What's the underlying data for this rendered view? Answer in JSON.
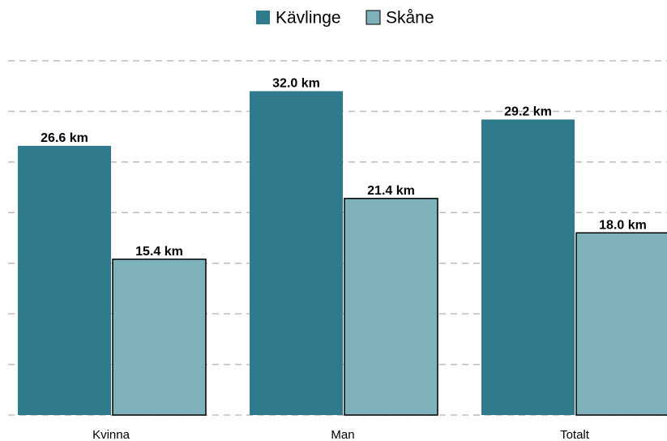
{
  "chart_data": {
    "type": "bar",
    "categories": [
      "Kvinna",
      "Man",
      "Totalt"
    ],
    "series": [
      {
        "name": "Kävlinge",
        "color": "#2f7a8c",
        "values": [
          26.6,
          32.0,
          29.2
        ],
        "value_labels": [
          "26.6 km",
          "32.0 km",
          "29.2 km"
        ]
      },
      {
        "name": "Skåne",
        "color": "#7fb1ba",
        "values": [
          15.4,
          21.4,
          18.0
        ],
        "value_labels": [
          "15.4 km",
          "21.4 km",
          "18.0 km"
        ]
      }
    ],
    "ylim": [
      0,
      35
    ],
    "yticks": [
      0,
      5,
      10,
      15,
      20,
      25,
      30,
      35
    ],
    "grid": true,
    "legend": "top"
  }
}
